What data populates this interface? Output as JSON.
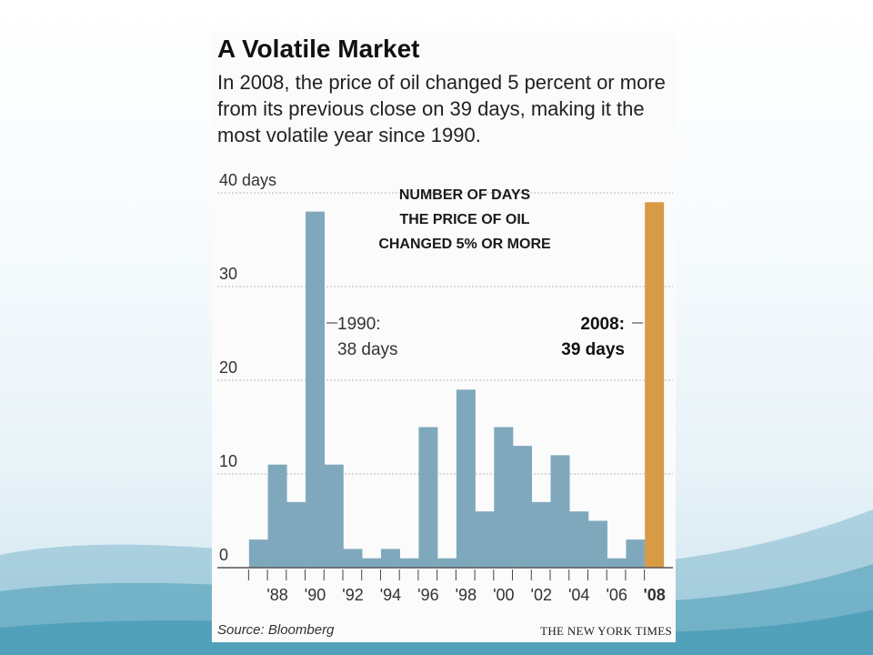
{
  "background": {
    "accent": "#4a9cb6"
  },
  "graphic": {
    "title": "A Volatile Market",
    "subtitle": "In 2008, the price of oil changed 5 percent or more from its previous close on 39 days, making it the most volatile year since 1990.",
    "source": "Source: Bloomberg",
    "credit": "THE NEW YORK TIMES"
  },
  "chart_data": {
    "type": "bar",
    "title": "NUMBER OF DAYS THE PRICE OF OIL CHANGED 5% OR MORE",
    "title_lines": [
      "NUMBER OF DAYS",
      "THE PRICE OF OIL",
      "CHANGED 5% OR MORE"
    ],
    "categories": [
      "1987",
      "1988",
      "1989",
      "1990",
      "1991",
      "1992",
      "1993",
      "1994",
      "1995",
      "1996",
      "1997",
      "1998",
      "1999",
      "2000",
      "2001",
      "2002",
      "2003",
      "2004",
      "2005",
      "2006",
      "2007",
      "2008"
    ],
    "values": [
      3,
      11,
      7,
      38,
      11,
      2,
      1,
      2,
      1,
      15,
      1,
      19,
      6,
      15,
      13,
      7,
      12,
      6,
      5,
      1,
      3,
      39
    ],
    "tick_labels": [
      "'88",
      "'90",
      "'92",
      "'94",
      "'96",
      "'98",
      "'00",
      "'02",
      "'04",
      "'06",
      "'08"
    ],
    "y_ticks": [
      "0",
      "10",
      "20",
      "30",
      "40 days"
    ],
    "ylim": [
      0,
      40
    ],
    "colors": {
      "bar": "#7fa8bd",
      "highlight": "#d99a45"
    },
    "annotations": [
      {
        "year": "1990",
        "lines": [
          "1990:",
          "38 days"
        ],
        "bold": false
      },
      {
        "year": "2008",
        "lines": [
          "2008:",
          "39 days"
        ],
        "bold": true
      }
    ],
    "grid": true
  }
}
